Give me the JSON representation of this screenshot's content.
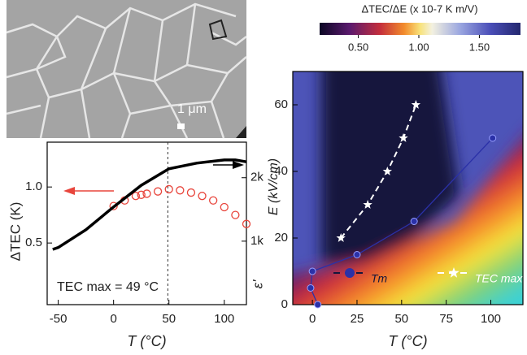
{
  "micrograph": {
    "scale_bar": "1 μm"
  },
  "chart_data": [
    {
      "type": "line",
      "xlabel": "T (°C)",
      "ylabel": "ΔTEC (K)",
      "y2label": "ε'",
      "annotation": "TEC max = 49 °C",
      "vline": 49,
      "xlim": [
        -60,
        120
      ],
      "xticks": [
        -50,
        0,
        50,
        100
      ],
      "ylim": [
        -0.05,
        1.4
      ],
      "yticks": [
        0.5,
        {
          "value": 1,
          "label": "1.0"
        }
      ],
      "y2lim": [
        0,
        2560
      ],
      "y2ticks": [
        {
          "value": 1000,
          "label": "1k"
        },
        {
          "value": 2000,
          "label": "2k"
        }
      ],
      "series": [
        {
          "color": "#e8453c",
          "marker": "circle-open",
          "x": [
            0,
            10,
            20,
            25,
            30,
            40,
            50,
            60,
            70,
            80,
            90,
            100,
            110,
            120
          ],
          "values": [
            0.83,
            0.88,
            0.92,
            0.93,
            0.94,
            0.96,
            0.98,
            0.97,
            0.95,
            0.92,
            0.88,
            0.82,
            0.75,
            0.67
          ]
        },
        {
          "color": "#000000",
          "axis": "y2",
          "x": [
            -55,
            -50,
            -25,
            0,
            25,
            50,
            75,
            100,
            110,
            120
          ],
          "values": [
            870,
            900,
            1180,
            1540,
            1880,
            2140,
            2230,
            2280,
            2280,
            2250
          ]
        }
      ]
    },
    {
      "type": "contour",
      "xlabel": "T (°C)",
      "ylabel": "E (kV/cm)",
      "legend": "lower right",
      "colorbar": {
        "title": "ΔTEC/ΔE (x 10-7 K m/V)",
        "lim": [
          0.18,
          1.84
        ],
        "ticks": [
          {
            "value": 0.5,
            "label": "0.50"
          },
          {
            "value": 1,
            "label": "1.00"
          },
          {
            "value": 1.5,
            "label": "1.50"
          }
        ]
      },
      "xlim": [
        -11,
        118
      ],
      "xticks": [
        0,
        25,
        50,
        75,
        100
      ],
      "ylim": [
        0,
        70
      ],
      "yticks": [
        0,
        20,
        40,
        60
      ],
      "series": [
        {
          "name": "Tm",
          "color": "#2b31a8",
          "marker": "circle",
          "x": [
            3,
            -1,
            0,
            25,
            57,
            101
          ],
          "values": [
            0,
            5,
            10,
            15,
            25,
            50
          ]
        },
        {
          "name": "TEC max",
          "color": "#ffffff",
          "marker": "star",
          "x": [
            16,
            31,
            42,
            51,
            58
          ],
          "values": [
            20,
            30,
            40,
            50,
            60
          ]
        }
      ]
    }
  ]
}
